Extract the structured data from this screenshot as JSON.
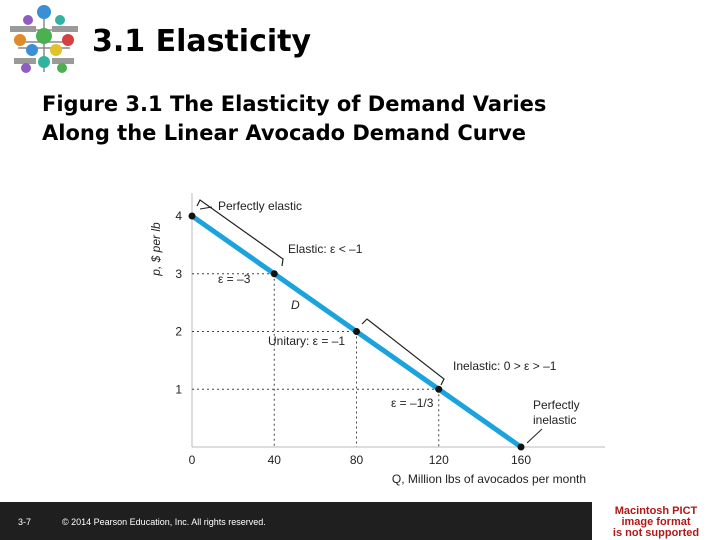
{
  "slide": {
    "title": "3.1 Elasticity",
    "subtitle_line1": "Figure 3.1  The Elasticity of Demand Varies",
    "subtitle_line2": "Along the Linear Avocado Demand Curve"
  },
  "footer": {
    "page_number": "3-7",
    "copyright": "© 2014 Pearson Education, Inc. All rights reserved.",
    "image_notice_line1": "Macintosh PICT",
    "image_notice_line2": "image format",
    "image_notice_line3": "is not supported"
  },
  "colors": {
    "demand_line": "#1aa3dc",
    "footer_bg": "#1f1f1f",
    "notice_text": "#b01818"
  },
  "chart_data": {
    "type": "line",
    "xlabel": "Q, Million lbs of avocados per month",
    "ylabel": "p, $ per lb",
    "xlim": [
      0,
      160
    ],
    "ylim": [
      0,
      4
    ],
    "x_ticks": [
      "0",
      "40",
      "80",
      "120",
      "160"
    ],
    "y_ticks": [
      "1",
      "2",
      "3",
      "4"
    ],
    "series": [
      {
        "name": "D",
        "x": [
          0,
          160
        ],
        "y": [
          4,
          0
        ]
      }
    ],
    "points": [
      {
        "x": 0,
        "y": 4
      },
      {
        "x": 40,
        "y": 3
      },
      {
        "x": 80,
        "y": 2
      },
      {
        "x": 120,
        "y": 1
      },
      {
        "x": 160,
        "y": 0
      }
    ],
    "labels": {
      "perfectly_elastic": "Perfectly elastic",
      "elastic": "Elastic: ε < –1",
      "eps_minus3": "ε = –3",
      "demand": "D",
      "unitary": "Unitary: ε = –1",
      "inelastic": "Inelastic: 0 > ε > –1",
      "eps_minus_third": "ε = –1/3",
      "perfectly_inelastic_1": "Perfectly",
      "perfectly_inelastic_2": "inelastic"
    }
  }
}
